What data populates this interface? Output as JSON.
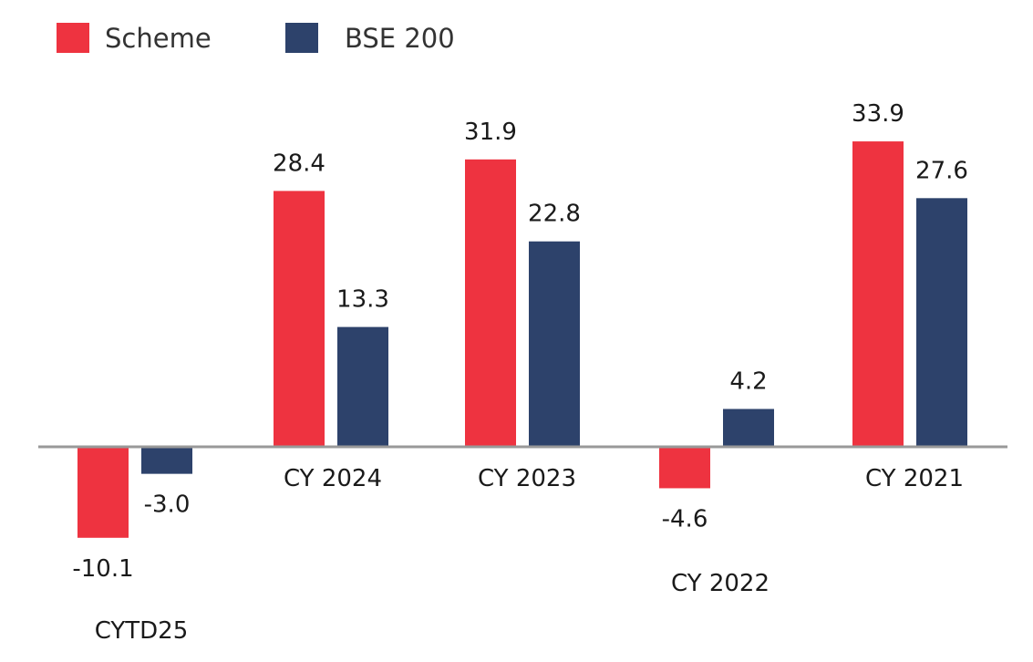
{
  "chart_data": {
    "type": "bar",
    "title": "",
    "xlabel": "",
    "ylabel": "",
    "categories": [
      "CYTD25",
      "CY 2024",
      "CY 2023",
      "CY 2022",
      "CY 2021"
    ],
    "series": [
      {
        "name": "Scheme",
        "color": "#ee3340",
        "values": [
          -10.1,
          28.4,
          31.9,
          -4.6,
          33.9
        ],
        "labels": [
          "-10.1",
          "28.4",
          "31.9",
          "-4.6",
          "33.9"
        ]
      },
      {
        "name": "BSE 200",
        "color": "#2d426b",
        "values": [
          -3.0,
          13.3,
          22.8,
          4.2,
          27.6
        ],
        "labels": [
          "-3.0",
          "13.3",
          "22.8",
          "4.2",
          "27.6"
        ]
      }
    ],
    "ylim": [
      -13,
      41
    ],
    "grid": false,
    "legend_position": "top-left",
    "axis_line_color": "#999999"
  }
}
